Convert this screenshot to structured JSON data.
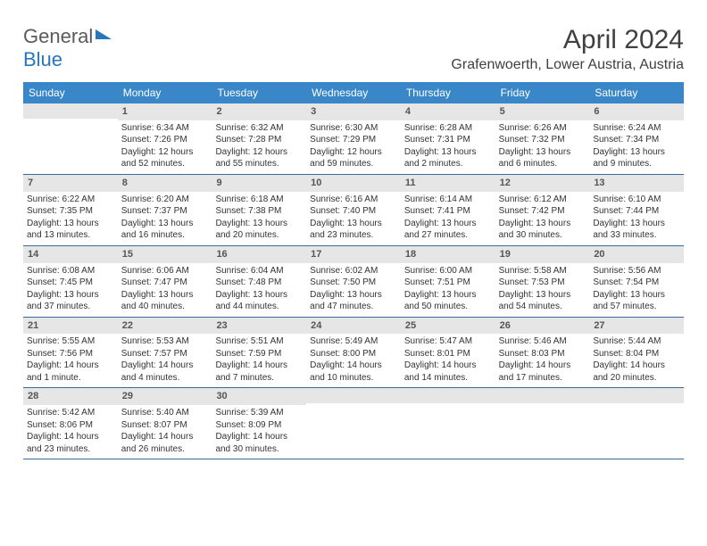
{
  "logo": {
    "text1": "General",
    "text2": "Blue"
  },
  "title": "April 2024",
  "location": "Grafenwoerth, Lower Austria, Austria",
  "dayHeaders": [
    "Sunday",
    "Monday",
    "Tuesday",
    "Wednesday",
    "Thursday",
    "Friday",
    "Saturday"
  ],
  "colors": {
    "headerBlue": "#3987c9",
    "dayBarGray": "#e6e6e6",
    "rowBorder": "#3a6a9a",
    "logoBlue": "#2876bb"
  },
  "weeks": [
    [
      {
        "num": "",
        "lines": []
      },
      {
        "num": "1",
        "lines": [
          "Sunrise: 6:34 AM",
          "Sunset: 7:26 PM",
          "Daylight: 12 hours and 52 minutes."
        ]
      },
      {
        "num": "2",
        "lines": [
          "Sunrise: 6:32 AM",
          "Sunset: 7:28 PM",
          "Daylight: 12 hours and 55 minutes."
        ]
      },
      {
        "num": "3",
        "lines": [
          "Sunrise: 6:30 AM",
          "Sunset: 7:29 PM",
          "Daylight: 12 hours and 59 minutes."
        ]
      },
      {
        "num": "4",
        "lines": [
          "Sunrise: 6:28 AM",
          "Sunset: 7:31 PM",
          "Daylight: 13 hours and 2 minutes."
        ]
      },
      {
        "num": "5",
        "lines": [
          "Sunrise: 6:26 AM",
          "Sunset: 7:32 PM",
          "Daylight: 13 hours and 6 minutes."
        ]
      },
      {
        "num": "6",
        "lines": [
          "Sunrise: 6:24 AM",
          "Sunset: 7:34 PM",
          "Daylight: 13 hours and 9 minutes."
        ]
      }
    ],
    [
      {
        "num": "7",
        "lines": [
          "Sunrise: 6:22 AM",
          "Sunset: 7:35 PM",
          "Daylight: 13 hours and 13 minutes."
        ]
      },
      {
        "num": "8",
        "lines": [
          "Sunrise: 6:20 AM",
          "Sunset: 7:37 PM",
          "Daylight: 13 hours and 16 minutes."
        ]
      },
      {
        "num": "9",
        "lines": [
          "Sunrise: 6:18 AM",
          "Sunset: 7:38 PM",
          "Daylight: 13 hours and 20 minutes."
        ]
      },
      {
        "num": "10",
        "lines": [
          "Sunrise: 6:16 AM",
          "Sunset: 7:40 PM",
          "Daylight: 13 hours and 23 minutes."
        ]
      },
      {
        "num": "11",
        "lines": [
          "Sunrise: 6:14 AM",
          "Sunset: 7:41 PM",
          "Daylight: 13 hours and 27 minutes."
        ]
      },
      {
        "num": "12",
        "lines": [
          "Sunrise: 6:12 AM",
          "Sunset: 7:42 PM",
          "Daylight: 13 hours and 30 minutes."
        ]
      },
      {
        "num": "13",
        "lines": [
          "Sunrise: 6:10 AM",
          "Sunset: 7:44 PM",
          "Daylight: 13 hours and 33 minutes."
        ]
      }
    ],
    [
      {
        "num": "14",
        "lines": [
          "Sunrise: 6:08 AM",
          "Sunset: 7:45 PM",
          "Daylight: 13 hours and 37 minutes."
        ]
      },
      {
        "num": "15",
        "lines": [
          "Sunrise: 6:06 AM",
          "Sunset: 7:47 PM",
          "Daylight: 13 hours and 40 minutes."
        ]
      },
      {
        "num": "16",
        "lines": [
          "Sunrise: 6:04 AM",
          "Sunset: 7:48 PM",
          "Daylight: 13 hours and 44 minutes."
        ]
      },
      {
        "num": "17",
        "lines": [
          "Sunrise: 6:02 AM",
          "Sunset: 7:50 PM",
          "Daylight: 13 hours and 47 minutes."
        ]
      },
      {
        "num": "18",
        "lines": [
          "Sunrise: 6:00 AM",
          "Sunset: 7:51 PM",
          "Daylight: 13 hours and 50 minutes."
        ]
      },
      {
        "num": "19",
        "lines": [
          "Sunrise: 5:58 AM",
          "Sunset: 7:53 PM",
          "Daylight: 13 hours and 54 minutes."
        ]
      },
      {
        "num": "20",
        "lines": [
          "Sunrise: 5:56 AM",
          "Sunset: 7:54 PM",
          "Daylight: 13 hours and 57 minutes."
        ]
      }
    ],
    [
      {
        "num": "21",
        "lines": [
          "Sunrise: 5:55 AM",
          "Sunset: 7:56 PM",
          "Daylight: 14 hours and 1 minute."
        ]
      },
      {
        "num": "22",
        "lines": [
          "Sunrise: 5:53 AM",
          "Sunset: 7:57 PM",
          "Daylight: 14 hours and 4 minutes."
        ]
      },
      {
        "num": "23",
        "lines": [
          "Sunrise: 5:51 AM",
          "Sunset: 7:59 PM",
          "Daylight: 14 hours and 7 minutes."
        ]
      },
      {
        "num": "24",
        "lines": [
          "Sunrise: 5:49 AM",
          "Sunset: 8:00 PM",
          "Daylight: 14 hours and 10 minutes."
        ]
      },
      {
        "num": "25",
        "lines": [
          "Sunrise: 5:47 AM",
          "Sunset: 8:01 PM",
          "Daylight: 14 hours and 14 minutes."
        ]
      },
      {
        "num": "26",
        "lines": [
          "Sunrise: 5:46 AM",
          "Sunset: 8:03 PM",
          "Daylight: 14 hours and 17 minutes."
        ]
      },
      {
        "num": "27",
        "lines": [
          "Sunrise: 5:44 AM",
          "Sunset: 8:04 PM",
          "Daylight: 14 hours and 20 minutes."
        ]
      }
    ],
    [
      {
        "num": "28",
        "lines": [
          "Sunrise: 5:42 AM",
          "Sunset: 8:06 PM",
          "Daylight: 14 hours and 23 minutes."
        ]
      },
      {
        "num": "29",
        "lines": [
          "Sunrise: 5:40 AM",
          "Sunset: 8:07 PM",
          "Daylight: 14 hours and 26 minutes."
        ]
      },
      {
        "num": "30",
        "lines": [
          "Sunrise: 5:39 AM",
          "Sunset: 8:09 PM",
          "Daylight: 14 hours and 30 minutes."
        ]
      },
      {
        "num": "",
        "lines": []
      },
      {
        "num": "",
        "lines": []
      },
      {
        "num": "",
        "lines": []
      },
      {
        "num": "",
        "lines": []
      }
    ]
  ]
}
